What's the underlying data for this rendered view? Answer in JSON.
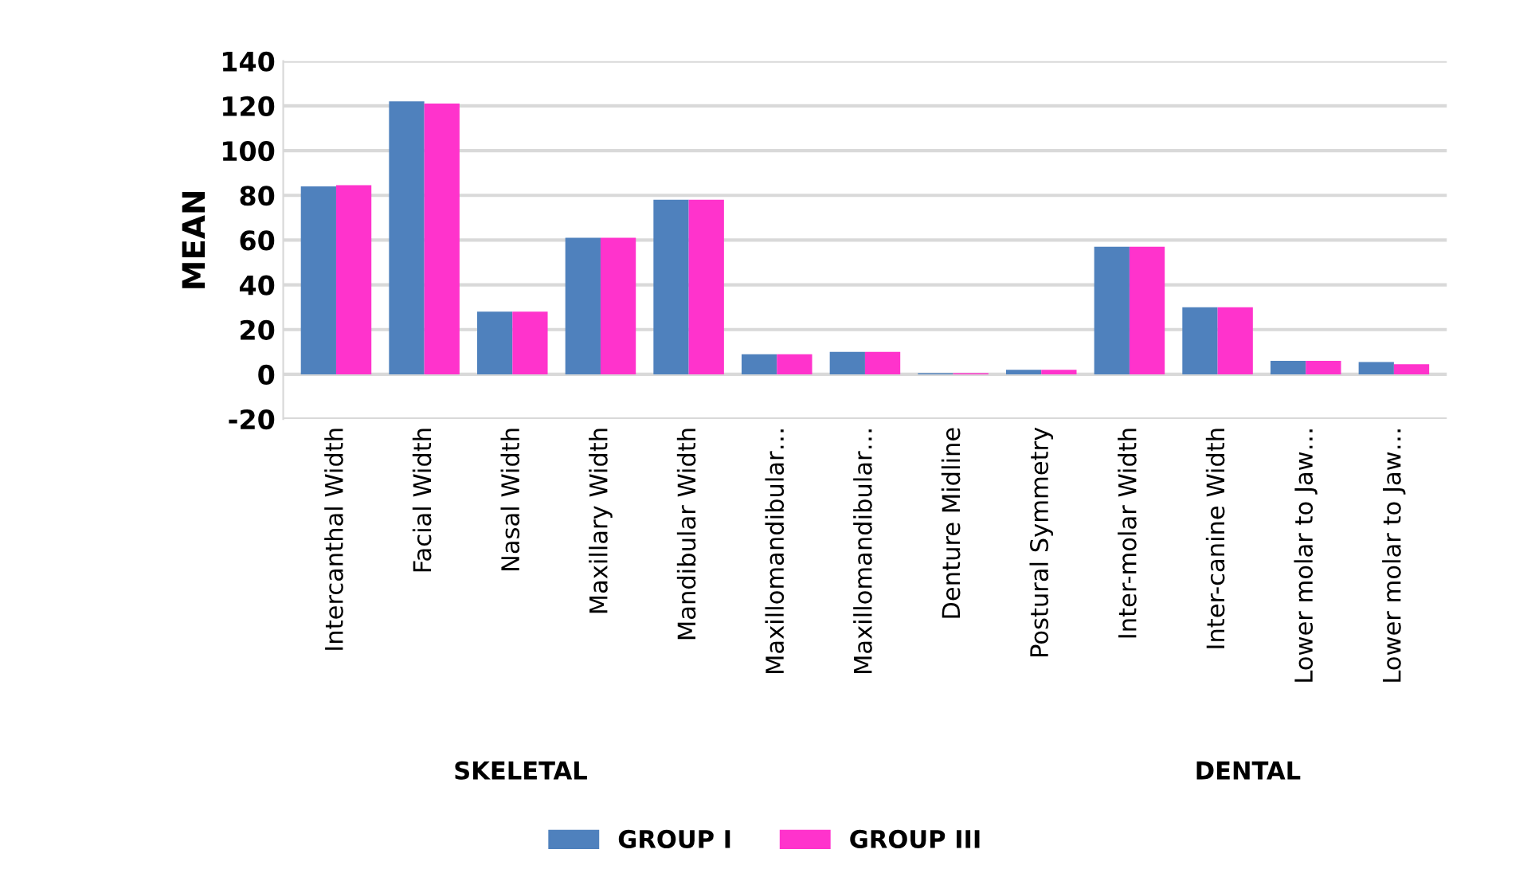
{
  "chart_data": {
    "type": "bar",
    "ylabel": "MEAN",
    "categories": [
      "Intercanthal Width",
      "Facial Width",
      "Nasal Width",
      "Maxillary Width",
      "Mandibular Width",
      "Maxillomandibular…",
      "Maxillomandibular…",
      "Denture Midline",
      "Postural Symmetry",
      "Inter-molar Width",
      "Inter-canine Width",
      "Lower molar to Jaw…",
      "Lower molar to Jaw…"
    ],
    "series": [
      {
        "name": "GROUP I",
        "color": "#4f81bd",
        "values": [
          84,
          122,
          28,
          61,
          78,
          9,
          10,
          0.5,
          2,
          57,
          30,
          6,
          5.5
        ]
      },
      {
        "name": "GROUP III",
        "color": "#ff33cc",
        "values": [
          84.5,
          121,
          28,
          61,
          78,
          9,
          10,
          0.5,
          2,
          57,
          30,
          6,
          4.5
        ]
      }
    ],
    "ylim": [
      -20,
      140
    ],
    "yticks": [
      -20,
      0,
      20,
      40,
      60,
      80,
      100,
      120,
      140
    ],
    "grid": "y",
    "legend": "bottom",
    "annotations": [
      "SKELETAL",
      "DENTAL"
    ]
  }
}
